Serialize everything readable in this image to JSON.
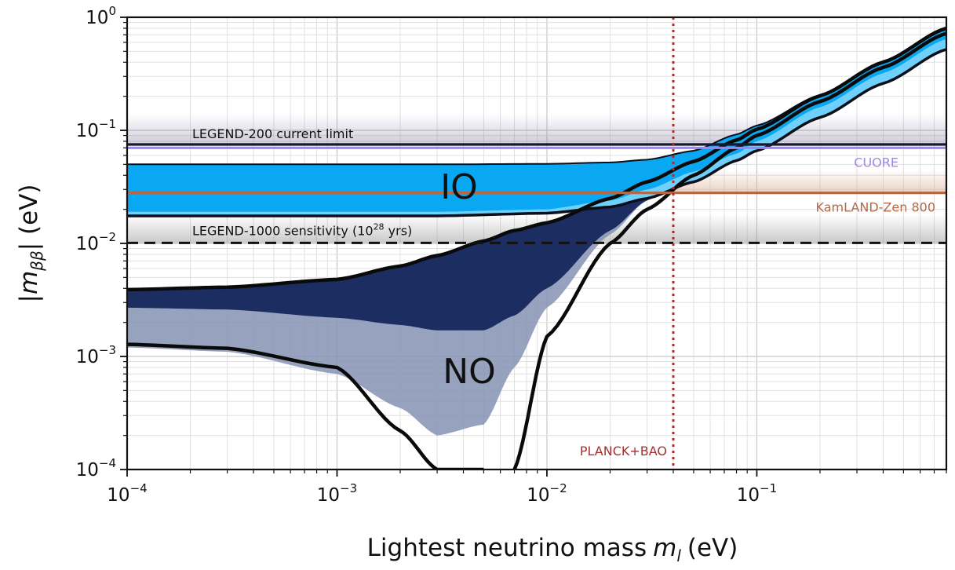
{
  "chart_data": {
    "type": "area",
    "xlabel": "Lightest neutrino mass",
    "xlabel_symbol": "m",
    "xlabel_sub": "l",
    "xlabel_unit": "(eV)",
    "ylabel_open": "|",
    "ylabel_symbol": "m",
    "ylabel_sub": "ββ",
    "ylabel_close": "| (eV)",
    "x_scale": "log",
    "y_scale": "log",
    "xlim": [
      0.0001,
      0.8
    ],
    "ylim": [
      0.0001,
      1
    ],
    "grid": true,
    "x_ticks": [
      {
        "value": 0.0001,
        "base": "10",
        "exp": "−4"
      },
      {
        "value": 0.001,
        "base": "10",
        "exp": "−3"
      },
      {
        "value": 0.01,
        "base": "10",
        "exp": "−2"
      },
      {
        "value": 0.1,
        "base": "10",
        "exp": "−1"
      }
    ],
    "y_ticks": [
      {
        "value": 0.0001,
        "base": "10",
        "exp": "−4"
      },
      {
        "value": 0.001,
        "base": "10",
        "exp": "−3"
      },
      {
        "value": 0.01,
        "base": "10",
        "exp": "−2"
      },
      {
        "value": 0.1,
        "base": "10",
        "exp": "−1"
      },
      {
        "value": 1,
        "base": "10",
        "exp": "0"
      }
    ],
    "region_labels": {
      "io": "IO",
      "no": "NO"
    },
    "series": [
      {
        "name": "IO",
        "color": "#0aa8f2",
        "light_color": "#6fd0fb",
        "outline": "#0a0f1a",
        "x": [
          0.0001,
          0.003,
          0.01,
          0.02,
          0.03,
          0.05,
          0.08,
          0.1,
          0.2,
          0.4,
          0.8
        ],
        "upper": [
          0.05,
          0.05,
          0.0505,
          0.052,
          0.055,
          0.066,
          0.092,
          0.11,
          0.205,
          0.402,
          0.8
        ],
        "lower": [
          0.0175,
          0.0175,
          0.0185,
          0.021,
          0.025,
          0.035,
          0.054,
          0.066,
          0.13,
          0.26,
          0.52
        ],
        "inner_lower": [
          0.019,
          0.019,
          0.02,
          0.024,
          0.03,
          0.043,
          0.062,
          0.08,
          0.16,
          0.32,
          0.64
        ]
      },
      {
        "name": "NO",
        "color": "#1b2d61",
        "light_color": "#8592b3",
        "outline": "#0a0a0a",
        "x": [
          0.0001,
          0.0003,
          0.001,
          0.002,
          0.003,
          0.005,
          0.007,
          0.01,
          0.02,
          0.03,
          0.05,
          0.08,
          0.1,
          0.2,
          0.4,
          0.8
        ],
        "upper": [
          0.0039,
          0.0041,
          0.0048,
          0.0063,
          0.0078,
          0.0105,
          0.013,
          0.0152,
          0.025,
          0.035,
          0.053,
          0.082,
          0.102,
          0.202,
          0.401,
          0.8
        ],
        "dark_lower": [
          0.0027,
          0.0026,
          0.0022,
          0.0019,
          0.0017,
          0.0017,
          0.0023,
          0.004,
          0.013,
          0.024,
          0.046,
          0.078,
          0.1,
          0.2,
          0.4,
          0.8
        ],
        "light_lower": [
          0.0012,
          0.0011,
          0.0007,
          0.00035,
          0.0002,
          0.00025,
          0.0008,
          0.0027,
          0.012,
          0.024,
          0.046,
          0.078,
          0.1,
          0.2,
          0.4,
          0.8
        ],
        "outer_lower": [
          0.00128,
          0.00118,
          0.0008,
          0.00022,
          0.0001,
          0.0001,
          0.0001,
          0.0015,
          0.01,
          0.02,
          0.04,
          0.07,
          0.09,
          0.18,
          0.36,
          0.72
        ]
      }
    ],
    "limits": [
      {
        "label": "LEGEND-200 current limit",
        "y": 0.075,
        "color": "#141a2b",
        "band_color": "#6b5e8a",
        "band_top": 0.14,
        "label_position": "top-left"
      },
      {
        "label": "CUORE",
        "y": 0.07,
        "color": "#9d86f0",
        "label_position": "right"
      },
      {
        "label": "KamLAND-Zen 800",
        "y": 0.028,
        "color": "#b26a45",
        "band_color": "#d6a58b",
        "band_top": 0.045,
        "label_position": "right"
      },
      {
        "label_prefix": "LEGEND-1000 sensitivity (10",
        "label_exp": "28",
        "label_suffix": " yrs)",
        "y": 0.0101,
        "color": "#111111",
        "style": "dashed",
        "band_color": "#888888",
        "band_top": 0.018,
        "label_position": "left"
      }
    ],
    "cosmology": {
      "label": "PLANCK+BAO",
      "x": 0.04,
      "color": "#a33030",
      "style": "dotted"
    }
  }
}
